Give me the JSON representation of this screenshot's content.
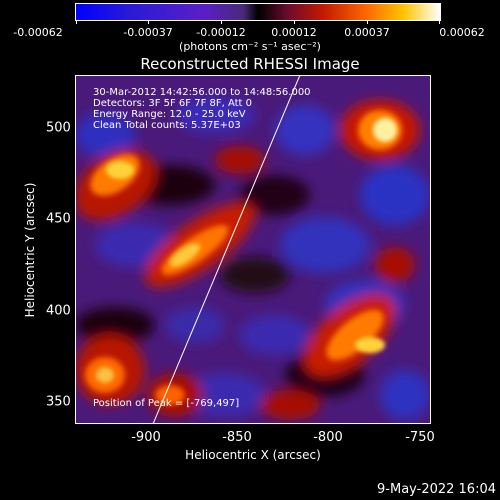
{
  "colorbar": {
    "tick_labels": [
      "-0.00062",
      "-0.00037",
      "-0.00012",
      "0.00012",
      "0.00037",
      "0.00062"
    ],
    "units": "(photons cm⁻² s⁻¹ asec⁻²)"
  },
  "title": "Reconstructed RHESSI Image",
  "info": {
    "time": "30-Mar-2012 14:42:56.000 to 14:48:56.000",
    "detectors": "Detectors: 3F 5F 6F 7F 8F, Att 0",
    "energy": "Energy Range: 12.0 - 25.0 keV",
    "clean": "Clean     Total counts: 5.37E+03",
    "peak": "Position of Peak = [-769,497]"
  },
  "axes": {
    "xlabel": "Heliocentric X (arcsec)",
    "ylabel": "Heliocentric Y (arcsec)",
    "x_ticks": [
      "-900",
      "-850",
      "-800",
      "-750"
    ],
    "y_ticks": [
      "500",
      "450",
      "400",
      "350"
    ],
    "x_range": [
      -943,
      -749
    ],
    "y_range": [
      341,
      529
    ]
  },
  "footer_date": "9-May-2022 16:04"
}
